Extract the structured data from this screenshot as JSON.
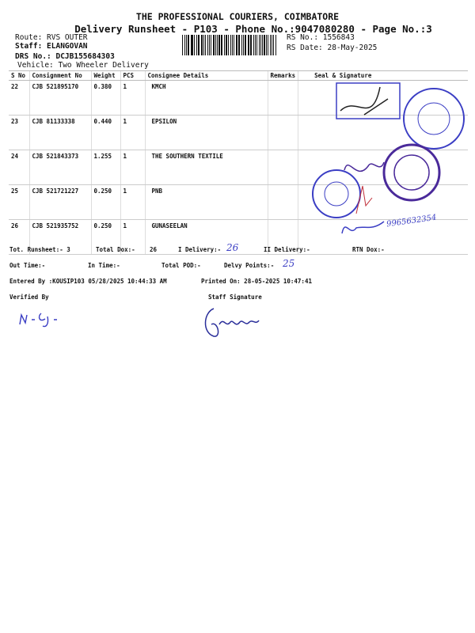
{
  "header": {
    "company": "THE PROFESSIONAL COURIERS, COIMBATORE",
    "subtitle": "Delivery Runsheet - P103 - Phone No.:9047080280 - Page No.:3",
    "route": "Route: RVS OUTER",
    "staff": "Staff: ELANGOVAN",
    "drs_no": "DRS No.: DCJB155684303",
    "vehicle": "Vehicle: Two Wheeler Delivery",
    "rs_no": "RS No.: 1556843",
    "rs_date": "RS Date: 28-May-2025"
  },
  "table": {
    "columns": [
      "S No",
      "Consignment No",
      "Weight",
      "PCS",
      "Consignee Details",
      "Remarks",
      "Seal & Signature"
    ],
    "rows": [
      {
        "sno": "22",
        "consignment": "CJB 521895170",
        "weight": "0.380",
        "pcs": "1",
        "consignee": "KMCH",
        "remarks": ""
      },
      {
        "sno": "23",
        "consignment": "CJB 81133338",
        "weight": "0.440",
        "pcs": "1",
        "consignee": "EPSILON",
        "remarks": ""
      },
      {
        "sno": "24",
        "consignment": "CJB 521843373",
        "weight": "1.255",
        "pcs": "1",
        "consignee": "THE SOUTHERN TEXTILE",
        "remarks": ""
      },
      {
        "sno": "25",
        "consignment": "CJB 521721227",
        "weight": "0.250",
        "pcs": "1",
        "consignee": "PNB",
        "remarks": ""
      },
      {
        "sno": "26",
        "consignment": "CJB 521935752",
        "weight": "0.250",
        "pcs": "1",
        "consignee": "GUNASEELAN",
        "remarks": ""
      }
    ],
    "handwritten_phone": "9965632354"
  },
  "summary": {
    "tot_runsheet": "Tot. Runsheet:- 3",
    "total_dox_label": "Total Dox:-",
    "total_dox": "26",
    "i_delivery_label": "I Delivery:-",
    "i_delivery_hand": "26",
    "ii_delivery": "II Delivery:-",
    "rtn_dox": "RTN Dox:-",
    "out_time": "Out Time:-",
    "in_time": "In Time:-",
    "total_pod": "Total POD:-",
    "delvy_points_label": "Delvy Points:-",
    "delvy_points_hand": "25",
    "entered_by": "Entered By :KOUSIP103 05/28/2025 10:44:33 AM",
    "printed_on": "Printed On: 28-05-2025 10:47:41",
    "verified_by": "Verified By",
    "staff_signature": "Staff Signature"
  },
  "colors": {
    "ink": "#111111",
    "stamp_blue": "#3b3ec4",
    "stamp_purple": "#4a2a9a",
    "signature_red": "#c0303a"
  }
}
